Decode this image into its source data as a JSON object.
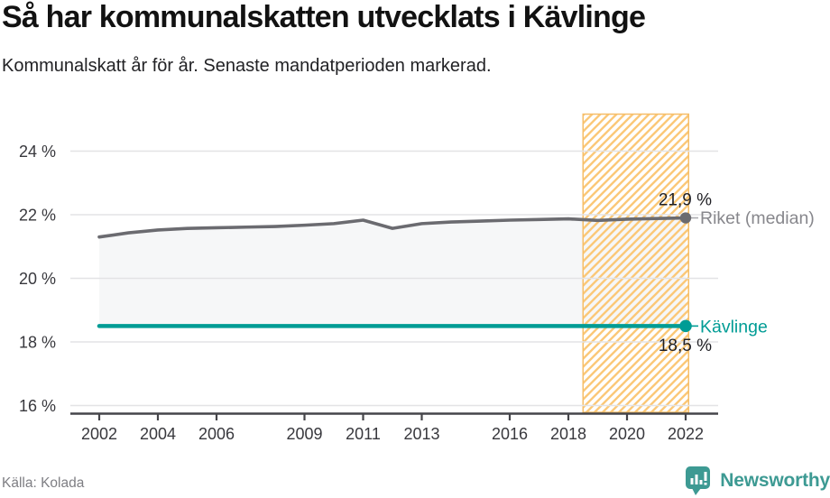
{
  "header": {
    "title": "Så har kommunalskatten utvecklats i Kävlinge",
    "subtitle": "Kommunalskatt år för år. Senaste mandatperioden markerad."
  },
  "chart_data": {
    "type": "line",
    "title": "Så har kommunalskatten utvecklats i Kävlinge",
    "x": [
      2002,
      2003,
      2004,
      2005,
      2006,
      2007,
      2008,
      2009,
      2010,
      2011,
      2012,
      2013,
      2014,
      2015,
      2016,
      2017,
      2018,
      2019,
      2020,
      2021,
      2022
    ],
    "series": [
      {
        "name": "Riket (median)",
        "color": "#6b6b70",
        "label_color": "#87878c",
        "end_value_label": "21,9 %",
        "values": [
          21.3,
          21.43,
          21.52,
          21.57,
          21.59,
          21.61,
          21.63,
          21.67,
          21.72,
          21.83,
          21.57,
          21.72,
          21.77,
          21.8,
          21.83,
          21.85,
          21.87,
          21.82,
          21.86,
          21.88,
          21.9
        ]
      },
      {
        "name": "Kävlinge",
        "color": "#009c95",
        "label_color": "#009c95",
        "end_value_label": "18,5 %",
        "values": [
          18.5,
          18.5,
          18.5,
          18.5,
          18.5,
          18.5,
          18.5,
          18.5,
          18.5,
          18.5,
          18.5,
          18.5,
          18.5,
          18.5,
          18.5,
          18.5,
          18.5,
          18.5,
          18.5,
          18.5,
          18.5
        ]
      }
    ],
    "fill_between_series": {
      "color": "#f6f7f8"
    },
    "highlight_band": {
      "x_start": 2018.5,
      "x_end": 2022.1,
      "stripe_color": "#fbc878",
      "border_color": "#f6be68"
    },
    "xticks": [
      2002,
      2004,
      2006,
      2009,
      2011,
      2013,
      2016,
      2018,
      2020,
      2022
    ],
    "yticks": [
      16,
      18,
      20,
      22,
      24
    ],
    "ytick_labels": [
      "16 %",
      "18 %",
      "20 %",
      "22 %",
      "24 %"
    ],
    "xlim": [
      2001,
      2023.1
    ],
    "ylim": [
      15.8,
      25.2
    ],
    "grid": "horizontal",
    "legend_position": "end-of-line",
    "annotation_value_color": "#1f1f24",
    "gridline_color": "#e3e3e5",
    "axis_color": "#45454a",
    "tick_label_color": "#38383d"
  },
  "footer": {
    "source": "Källa: Kolada",
    "brand": "Newsworthy",
    "brand_color": "#3d9a93",
    "brand_icon": "newsworthy-chart-pin-icon"
  }
}
